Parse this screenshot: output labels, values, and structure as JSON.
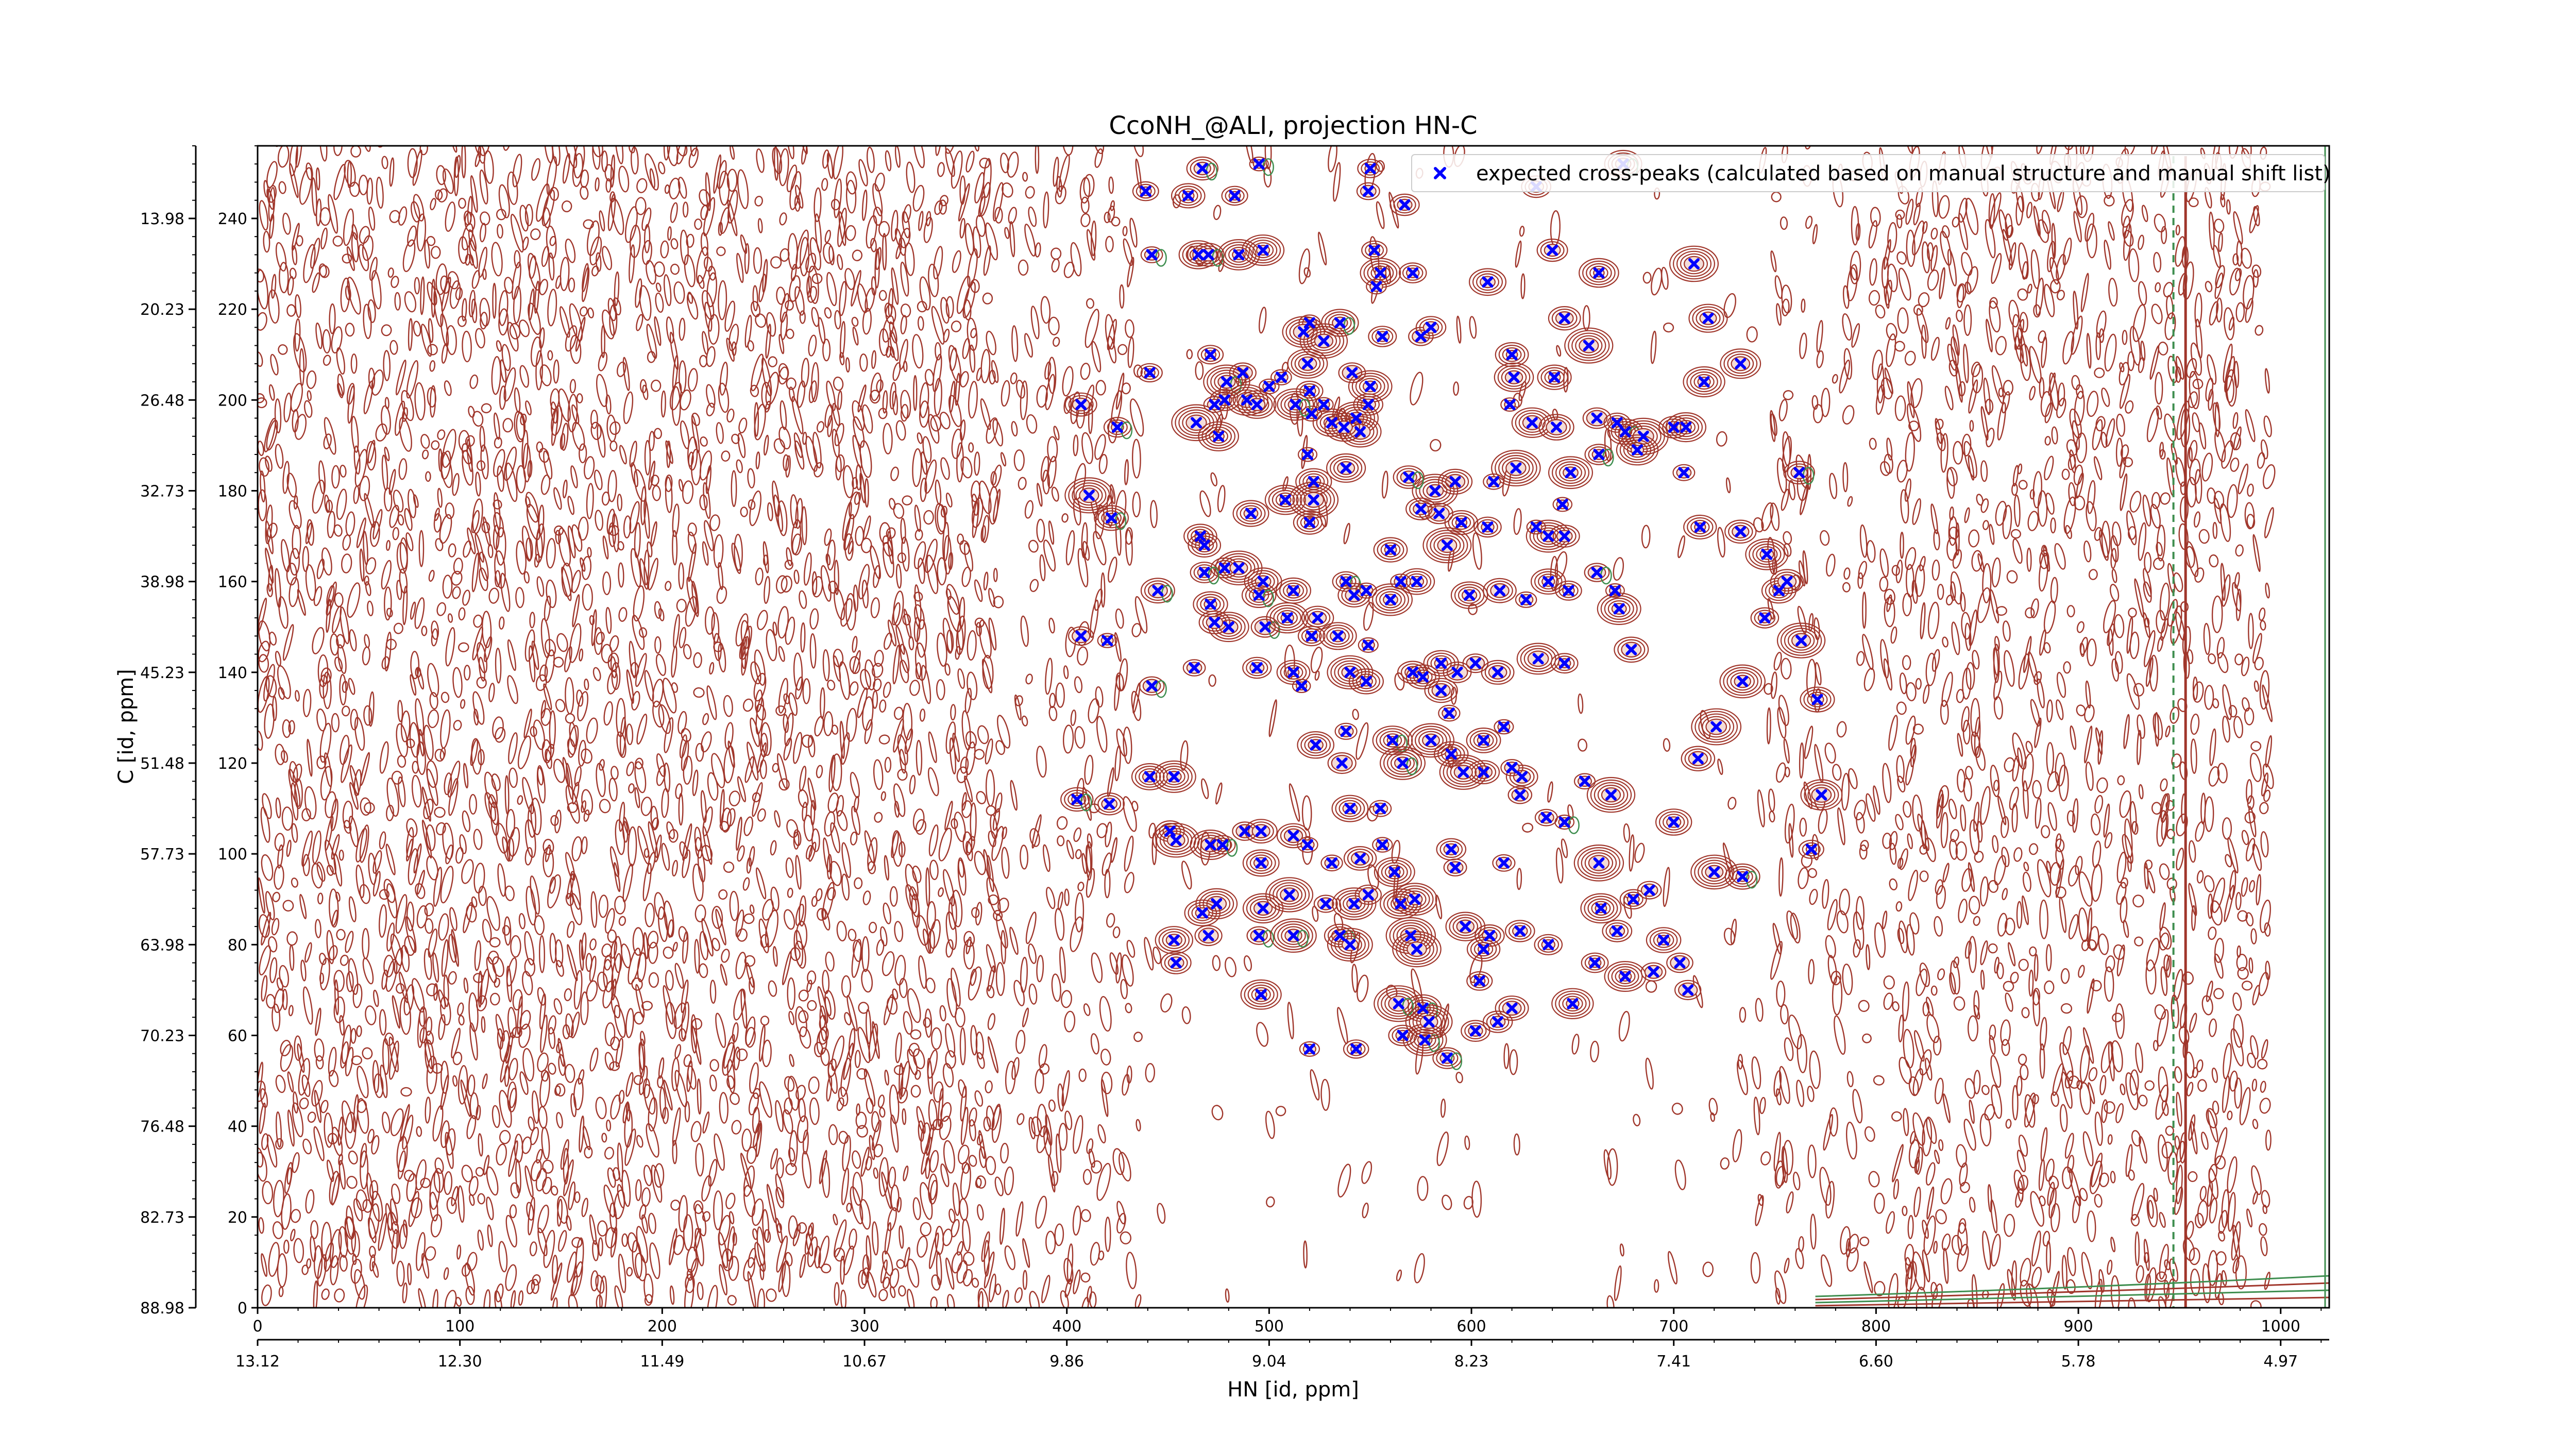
{
  "chart_data": {
    "type": "scatter",
    "title": "CcoNH_@ALI, projection HN-C",
    "xlabel": "HN [id, ppm]",
    "ylabel": "C [id, ppm]",
    "xlim": [
      0,
      1024
    ],
    "ylim": [
      0,
      256
    ],
    "grid": false,
    "legend_placement": "top-right",
    "x_ticks": [
      0,
      100,
      200,
      300,
      400,
      500,
      600,
      700,
      800,
      900,
      1000
    ],
    "x_tick_labels": [
      "0",
      "100",
      "200",
      "300",
      "400",
      "500",
      "600",
      "700",
      "800",
      "900",
      "1000"
    ],
    "x_secondary_tick_labels": [
      "13.12",
      "12.30",
      "11.49",
      "10.67",
      "9.86",
      "9.04",
      "8.23",
      "7.41",
      "6.60",
      "5.78",
      "4.97"
    ],
    "y_ticks": [
      0,
      20,
      40,
      60,
      80,
      100,
      120,
      140,
      160,
      180,
      200,
      220,
      240
    ],
    "y_tick_labels": [
      "0",
      "20",
      "40",
      "60",
      "80",
      "100",
      "120",
      "140",
      "160",
      "180",
      "200",
      "220",
      "240"
    ],
    "y_secondary_tick_labels": [
      "88.98",
      "82.73",
      "76.48",
      "70.23",
      "63.98",
      "57.73",
      "51.48",
      "45.23",
      "38.98",
      "32.73",
      "26.48",
      "20.23",
      "13.98"
    ],
    "series": [
      {
        "name": "expected cross-peaks (calculated based on manual structure and manual shift list)",
        "marker": "x",
        "color": "#0000ff",
        "points": [
          [
            467,
            251
          ],
          [
            495,
            252
          ],
          [
            439,
            246
          ],
          [
            460,
            245
          ],
          [
            483,
            245
          ],
          [
            550,
            251
          ],
          [
            549,
            246
          ],
          [
            567,
            243
          ],
          [
            442,
            232
          ],
          [
            465,
            232
          ],
          [
            470,
            232
          ],
          [
            485,
            232
          ],
          [
            497,
            233
          ],
          [
            552,
            233
          ],
          [
            555,
            228
          ],
          [
            571,
            228
          ],
          [
            553,
            225
          ],
          [
            520,
            217
          ],
          [
            517,
            215
          ],
          [
            527,
            213
          ],
          [
            535,
            217
          ],
          [
            556,
            214
          ],
          [
            575,
            214
          ],
          [
            580,
            216
          ],
          [
            441,
            206
          ],
          [
            471,
            210
          ],
          [
            487,
            206
          ],
          [
            479,
            204
          ],
          [
            478,
            200
          ],
          [
            473,
            199
          ],
          [
            489,
            200
          ],
          [
            494,
            199
          ],
          [
            506,
            205
          ],
          [
            500,
            203
          ],
          [
            519,
            208
          ],
          [
            520,
            202
          ],
          [
            521,
            197
          ],
          [
            513,
            199
          ],
          [
            541,
            206
          ],
          [
            550,
            203
          ],
          [
            549,
            199
          ],
          [
            543,
            196
          ],
          [
            531,
            195
          ],
          [
            527,
            199
          ],
          [
            545,
            193
          ],
          [
            537,
            194
          ],
          [
            407,
            199
          ],
          [
            425,
            194
          ],
          [
            464,
            195
          ],
          [
            475,
            192
          ],
          [
            519,
            188
          ],
          [
            522,
            182
          ],
          [
            538,
            185
          ],
          [
            522,
            178
          ],
          [
            411,
            179
          ],
          [
            422,
            174
          ],
          [
            466,
            170
          ],
          [
            468,
            168
          ],
          [
            491,
            175
          ],
          [
            508,
            178
          ],
          [
            520,
            173
          ],
          [
            478,
            163
          ],
          [
            485,
            163
          ],
          [
            497,
            160
          ],
          [
            512,
            158
          ],
          [
            495,
            157
          ],
          [
            445,
            158
          ],
          [
            468,
            162
          ],
          [
            471,
            155
          ],
          [
            538,
            160
          ],
          [
            542,
            157
          ],
          [
            548,
            158
          ],
          [
            565,
            160
          ],
          [
            560,
            156
          ],
          [
            480,
            150
          ],
          [
            473,
            151
          ],
          [
            498,
            150
          ],
          [
            509,
            152
          ],
          [
            521,
            148
          ],
          [
            534,
            148
          ],
          [
            549,
            146
          ],
          [
            524,
            152
          ],
          [
            407,
            148
          ],
          [
            420,
            147
          ],
          [
            463,
            141
          ],
          [
            442,
            137
          ],
          [
            494,
            141
          ],
          [
            512,
            140
          ],
          [
            540,
            140
          ],
          [
            548,
            138
          ],
          [
            571,
            140
          ],
          [
            585,
            136
          ],
          [
            516,
            137
          ],
          [
            523,
            124
          ],
          [
            538,
            127
          ],
          [
            561,
            125
          ],
          [
            580,
            125
          ],
          [
            566,
            120
          ],
          [
            536,
            120
          ],
          [
            606,
            118
          ],
          [
            625,
            117
          ],
          [
            441,
            117
          ],
          [
            453,
            117
          ],
          [
            405,
            112
          ],
          [
            421,
            111
          ],
          [
            451,
            105
          ],
          [
            454,
            103
          ],
          [
            488,
            105
          ],
          [
            496,
            105
          ],
          [
            512,
            104
          ],
          [
            519,
            102
          ],
          [
            540,
            110
          ],
          [
            555,
            110
          ],
          [
            556,
            102
          ],
          [
            471,
            102
          ],
          [
            477,
            102
          ],
          [
            496,
            98
          ],
          [
            531,
            98
          ],
          [
            545,
            99
          ],
          [
            562,
            96
          ],
          [
            590,
            101
          ],
          [
            592,
            97
          ],
          [
            616,
            98
          ],
          [
            663,
            98
          ],
          [
            474,
            89
          ],
          [
            467,
            87
          ],
          [
            497,
            88
          ],
          [
            510,
            91
          ],
          [
            528,
            89
          ],
          [
            542,
            89
          ],
          [
            549,
            91
          ],
          [
            565,
            89
          ],
          [
            572,
            90
          ],
          [
            453,
            81
          ],
          [
            454,
            76
          ],
          [
            470,
            82
          ],
          [
            495,
            82
          ],
          [
            512,
            82
          ],
          [
            535,
            82
          ],
          [
            540,
            80
          ],
          [
            570,
            82
          ],
          [
            573,
            79
          ],
          [
            597,
            84
          ],
          [
            609,
            82
          ],
          [
            624,
            83
          ],
          [
            638,
            80
          ],
          [
            606,
            79
          ],
          [
            604,
            72
          ],
          [
            496,
            69
          ],
          [
            520,
            57
          ],
          [
            543,
            57
          ],
          [
            566,
            60
          ],
          [
            577,
            59
          ],
          [
            576,
            66
          ],
          [
            564,
            67
          ],
          [
            632,
            247
          ],
          [
            675,
            252
          ],
          [
            640,
            233
          ],
          [
            663,
            228
          ],
          [
            608,
            226
          ],
          [
            646,
            218
          ],
          [
            658,
            212
          ],
          [
            620,
            210
          ],
          [
            621,
            205
          ],
          [
            641,
            205
          ],
          [
            619,
            199
          ],
          [
            630,
            195
          ],
          [
            642,
            194
          ],
          [
            662,
            196
          ],
          [
            672,
            195
          ],
          [
            676,
            193
          ],
          [
            685,
            192
          ],
          [
            700,
            194
          ],
          [
            682,
            189
          ],
          [
            663,
            188
          ],
          [
            649,
            184
          ],
          [
            622,
            185
          ],
          [
            611,
            182
          ],
          [
            592,
            182
          ],
          [
            582,
            180
          ],
          [
            569,
            183
          ],
          [
            645,
            177
          ],
          [
            638,
            170
          ],
          [
            646,
            170
          ],
          [
            632,
            172
          ],
          [
            608,
            172
          ],
          [
            595,
            173
          ],
          [
            584,
            175
          ],
          [
            575,
            176
          ],
          [
            588,
            168
          ],
          [
            560,
            167
          ],
          [
            573,
            160
          ],
          [
            599,
            157
          ],
          [
            614,
            158
          ],
          [
            627,
            156
          ],
          [
            638,
            160
          ],
          [
            648,
            158
          ],
          [
            662,
            162
          ],
          [
            671,
            158
          ],
          [
            673,
            154
          ],
          [
            679,
            145
          ],
          [
            646,
            142
          ],
          [
            633,
            143
          ],
          [
            613,
            140
          ],
          [
            602,
            142
          ],
          [
            593,
            140
          ],
          [
            585,
            142
          ],
          [
            576,
            139
          ],
          [
            589,
            131
          ],
          [
            590,
            122
          ],
          [
            596,
            118
          ],
          [
            606,
            125
          ],
          [
            616,
            128
          ],
          [
            620,
            119
          ],
          [
            624,
            113
          ],
          [
            637,
            108
          ],
          [
            646,
            107
          ],
          [
            656,
            116
          ],
          [
            669,
            113
          ],
          [
            700,
            107
          ],
          [
            720,
            96
          ],
          [
            734,
            95
          ],
          [
            768,
            101
          ],
          [
            773,
            113
          ],
          [
            771,
            134
          ],
          [
            763,
            147
          ],
          [
            752,
            158
          ],
          [
            746,
            166
          ],
          [
            733,
            171
          ],
          [
            713,
            172
          ],
          [
            705,
            184
          ],
          [
            706,
            194
          ],
          [
            715,
            204
          ],
          [
            717,
            218
          ],
          [
            710,
            230
          ],
          [
            733,
            208
          ],
          [
            762,
            184
          ],
          [
            756,
            160
          ],
          [
            745,
            152
          ],
          [
            734,
            138
          ],
          [
            721,
            128
          ],
          [
            712,
            121
          ],
          [
            664,
            88
          ],
          [
            672,
            83
          ],
          [
            680,
            90
          ],
          [
            688,
            92
          ],
          [
            695,
            81
          ],
          [
            703,
            76
          ],
          [
            707,
            70
          ],
          [
            650,
            67
          ],
          [
            661,
            76
          ],
          [
            676,
            73
          ],
          [
            690,
            74
          ],
          [
            620,
            66
          ],
          [
            613,
            63
          ],
          [
            602,
            61
          ],
          [
            588,
            55
          ],
          [
            579,
            63
          ]
        ]
      }
    ]
  },
  "legend": {
    "label": "expected cross-peaks (calculated based on manual structure and manual shift list)",
    "marker": "x"
  },
  "colors": {
    "contour_positive": "#a0362b",
    "contour_negative": "#3e8e4f",
    "marker": "#0000ff"
  }
}
